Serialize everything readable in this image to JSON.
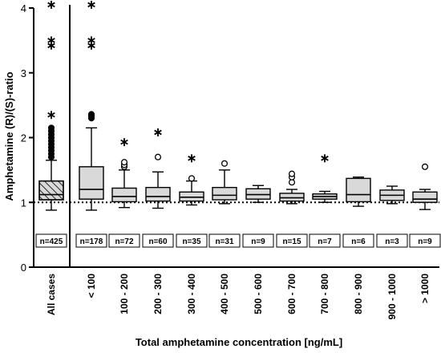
{
  "chart_data": {
    "type": "boxplot",
    "title": "",
    "xlabel": "Total amphetamine concentration [ng/mL]",
    "ylabel": "Amphetamine (R)/(S)-ratio",
    "ylim": [
      0,
      4
    ],
    "yticks": [
      0,
      1,
      2,
      3,
      4
    ],
    "reference_line": 1,
    "categories": [
      "All cases",
      "< 100",
      "100 - 200",
      "200 - 300",
      "300 - 400",
      "400 - 500",
      "500 - 600",
      "600 - 700",
      "700 - 800",
      "800 - 900",
      "900 - 1000",
      "> 1000"
    ],
    "n_labels": [
      "n=425",
      "n=178",
      "n=72",
      "n=60",
      "n=35",
      "n=31",
      "n=9",
      "n=15",
      "n=7",
      "n=6",
      "n=3",
      "n=9"
    ],
    "boxes": [
      {
        "q1": 1.04,
        "median": 1.12,
        "q3": 1.33,
        "whisker_low": 0.88,
        "whisker_high": 1.65,
        "outliers": [
          1.7,
          1.75,
          1.8,
          1.85,
          1.9,
          1.95,
          2.0,
          2.05,
          2.1,
          2.15
        ],
        "extremes": [
          2.35,
          3.42,
          3.5,
          4.05
        ],
        "hatched": true
      },
      {
        "q1": 1.05,
        "median": 1.2,
        "q3": 1.55,
        "whisker_low": 0.88,
        "whisker_high": 2.15,
        "outliers": [
          2.3,
          2.33,
          2.36
        ],
        "extremes": [
          3.42,
          3.5,
          4.05
        ],
        "hatched": false
      },
      {
        "q1": 1.01,
        "median": 1.09,
        "q3": 1.22,
        "whisker_low": 0.92,
        "whisker_high": 1.5,
        "outliers": [
          1.55,
          1.58,
          1.62
        ],
        "extremes": [
          1.93
        ],
        "hatched": false
      },
      {
        "q1": 1.02,
        "median": 1.09,
        "q3": 1.23,
        "whisker_low": 0.91,
        "whisker_high": 1.47,
        "outliers": [
          1.7
        ],
        "extremes": [
          2.08
        ],
        "hatched": false
      },
      {
        "q1": 1.02,
        "median": 1.08,
        "q3": 1.16,
        "whisker_low": 0.96,
        "whisker_high": 1.33,
        "outliers": [
          1.37
        ],
        "extremes": [
          1.68
        ],
        "hatched": false
      },
      {
        "q1": 1.04,
        "median": 1.11,
        "q3": 1.23,
        "whisker_low": 0.98,
        "whisker_high": 1.5,
        "outliers": [
          1.6
        ],
        "extremes": [],
        "hatched": false
      },
      {
        "q1": 1.05,
        "median": 1.12,
        "q3": 1.21,
        "whisker_low": 1.0,
        "whisker_high": 1.26,
        "outliers": [],
        "extremes": [],
        "hatched": false
      },
      {
        "q1": 1.02,
        "median": 1.07,
        "q3": 1.14,
        "whisker_low": 0.98,
        "whisker_high": 1.2,
        "outliers": [
          1.31,
          1.39,
          1.44
        ],
        "extremes": [],
        "hatched": false
      },
      {
        "q1": 1.05,
        "median": 1.09,
        "q3": 1.13,
        "whisker_low": 1.0,
        "whisker_high": 1.17,
        "outliers": [],
        "extremes": [
          1.68
        ],
        "hatched": false
      },
      {
        "q1": 1.01,
        "median": 1.12,
        "q3": 1.37,
        "whisker_low": 0.94,
        "whisker_high": 1.39,
        "outliers": [],
        "extremes": [],
        "hatched": false
      },
      {
        "q1": 1.03,
        "median": 1.11,
        "q3": 1.19,
        "whisker_low": 0.98,
        "whisker_high": 1.25,
        "outliers": [],
        "extremes": [],
        "hatched": false
      },
      {
        "q1": 1.0,
        "median": 1.05,
        "q3": 1.16,
        "whisker_low": 0.89,
        "whisker_high": 1.2,
        "outliers": [
          1.55
        ],
        "extremes": [],
        "hatched": false
      }
    ],
    "colors": {
      "box_fill": "#d9d9d9",
      "stroke": "#000000"
    }
  }
}
